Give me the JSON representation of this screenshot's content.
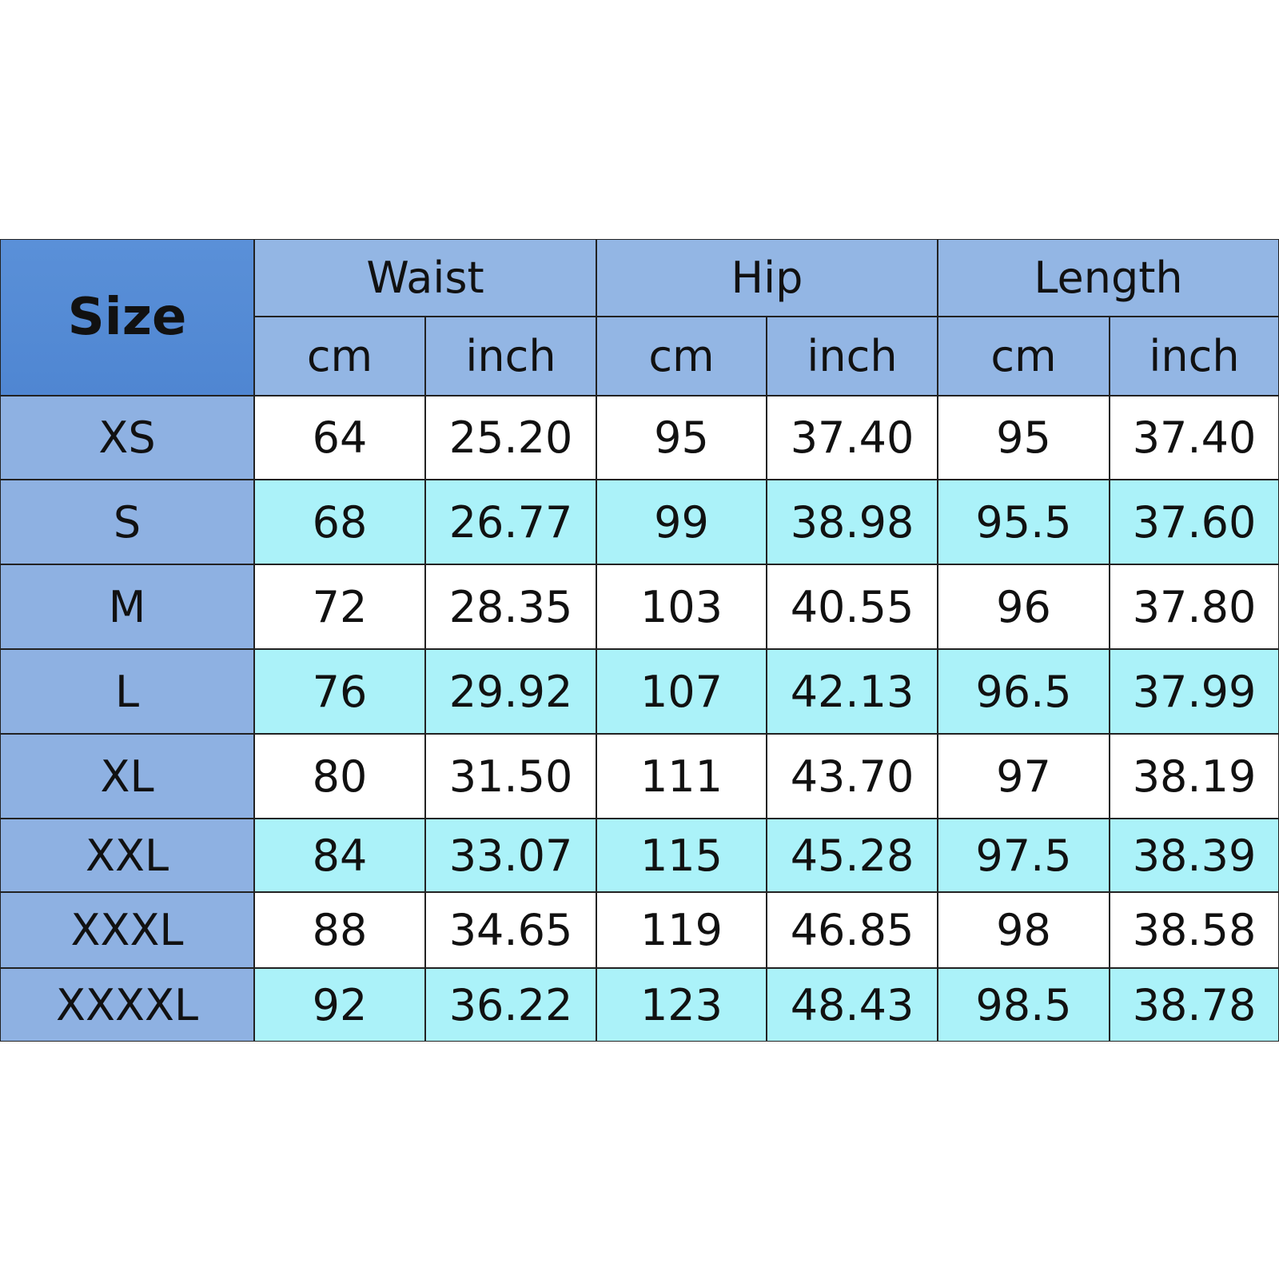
{
  "table": {
    "size_header": "Size",
    "groups": [
      "Waist",
      "Hip",
      "Length"
    ],
    "units": [
      "cm",
      "inch",
      "cm",
      "inch",
      "cm",
      "inch"
    ],
    "rows": [
      [
        "XS",
        "64",
        "25.20",
        "95",
        "37.40",
        "95",
        "37.40"
      ],
      [
        "S",
        "68",
        "26.77",
        "99",
        "38.98",
        "95.5",
        "37.60"
      ],
      [
        "M",
        "72",
        "28.35",
        "103",
        "40.55",
        "96",
        "37.80"
      ],
      [
        "L",
        "76",
        "29.92",
        "107",
        "42.13",
        "96.5",
        "37.99"
      ],
      [
        "XL",
        "80",
        "31.50",
        "111",
        "43.70",
        "97",
        "38.19"
      ],
      [
        "XXL",
        "84",
        "33.07",
        "115",
        "45.28",
        "97.5",
        "38.39"
      ],
      [
        "XXXL",
        "88",
        "34.65",
        "119",
        "46.85",
        "98",
        "38.58"
      ],
      [
        "XXXXL",
        "92",
        "36.22",
        "123",
        "48.43",
        "98.5",
        "38.78"
      ]
    ]
  }
}
